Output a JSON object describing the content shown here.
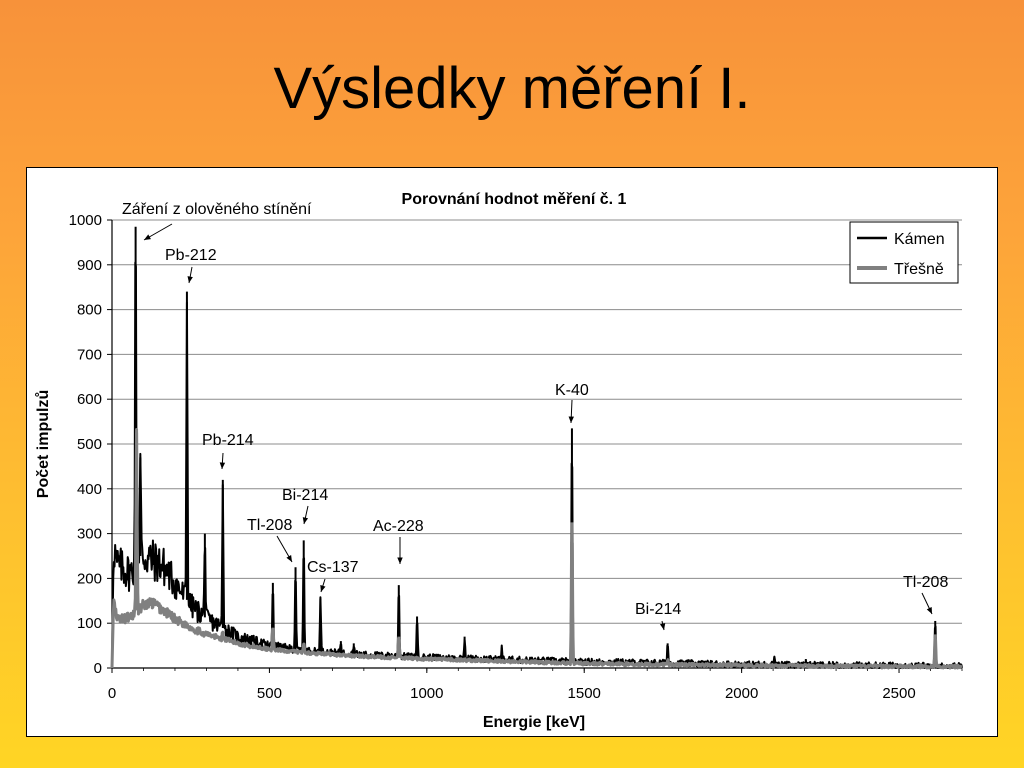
{
  "slide": {
    "title": "Výsledky měření I."
  },
  "colors": {
    "background_top": "#f7923a",
    "background_bottom": "#ffd524",
    "series_kamen": "#000000",
    "series_tresne": "#808080",
    "grid": "#8c8c8c"
  },
  "chart_data": {
    "type": "line",
    "title": "Porovnání hodnot měření č. 1",
    "xlabel": "Energie [keV]",
    "ylabel": "Počet impulzů",
    "xlim": [
      0,
      2700
    ],
    "ylim": [
      0,
      1000
    ],
    "xticks": [
      0,
      500,
      1000,
      1500,
      2000,
      2500
    ],
    "yticks": [
      0,
      100,
      200,
      300,
      400,
      500,
      600,
      700,
      800,
      900,
      1000
    ],
    "grid": "horizontal",
    "legend_position": "top-right",
    "series": [
      {
        "name": "Kámen",
        "color": "#000000",
        "baseline": [
          [
            0,
            0
          ],
          [
            5,
            280
          ],
          [
            15,
            230
          ],
          [
            40,
            220
          ],
          [
            60,
            210
          ],
          [
            80,
            250
          ],
          [
            100,
            250
          ],
          [
            130,
            240
          ],
          [
            160,
            230
          ],
          [
            200,
            190
          ],
          [
            250,
            140
          ],
          [
            300,
            110
          ],
          [
            350,
            90
          ],
          [
            400,
            70
          ],
          [
            450,
            60
          ],
          [
            500,
            50
          ],
          [
            600,
            40
          ],
          [
            700,
            35
          ],
          [
            800,
            30
          ],
          [
            1000,
            24
          ],
          [
            1200,
            20
          ],
          [
            1400,
            16
          ],
          [
            1500,
            14
          ],
          [
            1700,
            12
          ],
          [
            2000,
            8
          ],
          [
            2300,
            6
          ],
          [
            2700,
            4
          ]
        ],
        "peaks": [
          [
            75,
            985
          ],
          [
            90,
            470
          ],
          [
            238,
            840
          ],
          [
            295,
            300
          ],
          [
            352,
            420
          ],
          [
            511,
            190
          ],
          [
            583,
            225
          ],
          [
            609,
            285
          ],
          [
            662,
            155
          ],
          [
            727,
            60
          ],
          [
            768,
            55
          ],
          [
            911,
            185
          ],
          [
            969,
            115
          ],
          [
            1120,
            70
          ],
          [
            1238,
            45
          ],
          [
            1461,
            535
          ],
          [
            1765,
            55
          ],
          [
            2104,
            25
          ],
          [
            2204,
            20
          ],
          [
            2615,
            105
          ]
        ]
      },
      {
        "name": "Třešně",
        "color": "#808080",
        "baseline": [
          [
            0,
            0
          ],
          [
            5,
            150
          ],
          [
            15,
            110
          ],
          [
            40,
            110
          ],
          [
            60,
            115
          ],
          [
            80,
            130
          ],
          [
            100,
            140
          ],
          [
            130,
            145
          ],
          [
            160,
            130
          ],
          [
            200,
            110
          ],
          [
            250,
            90
          ],
          [
            300,
            75
          ],
          [
            350,
            65
          ],
          [
            400,
            55
          ],
          [
            450,
            48
          ],
          [
            500,
            42
          ],
          [
            600,
            35
          ],
          [
            700,
            30
          ],
          [
            800,
            26
          ],
          [
            1000,
            20
          ],
          [
            1200,
            16
          ],
          [
            1400,
            12
          ],
          [
            1500,
            10
          ],
          [
            1700,
            8
          ],
          [
            2000,
            6
          ],
          [
            2300,
            4
          ],
          [
            2700,
            3
          ]
        ],
        "peaks": [
          [
            78,
            525
          ],
          [
            238,
            95
          ],
          [
            352,
            80
          ],
          [
            511,
            90
          ],
          [
            609,
            55
          ],
          [
            911,
            70
          ],
          [
            1461,
            325
          ],
          [
            1765,
            18
          ],
          [
            2615,
            75
          ]
        ]
      }
    ],
    "annotations": [
      {
        "label": "Záření z olověného stínění",
        "energy": 75,
        "value": 985
      },
      {
        "label": "Pb-212",
        "energy": 238,
        "value": 840
      },
      {
        "label": "Pb-214",
        "energy": 352,
        "value": 420
      },
      {
        "label": "Bi-214",
        "energy": 609,
        "value": 285
      },
      {
        "label": "Tl-208",
        "energy": 583,
        "value": 225
      },
      {
        "label": "Cs-137",
        "energy": 662,
        "value": 155
      },
      {
        "label": "Ac-228",
        "energy": 911,
        "value": 185
      },
      {
        "label": "K-40",
        "energy": 1461,
        "value": 535
      },
      {
        "label": "Bi-214",
        "energy": 1765,
        "value": 55
      },
      {
        "label": "Tl-208",
        "energy": 2615,
        "value": 105
      }
    ]
  }
}
